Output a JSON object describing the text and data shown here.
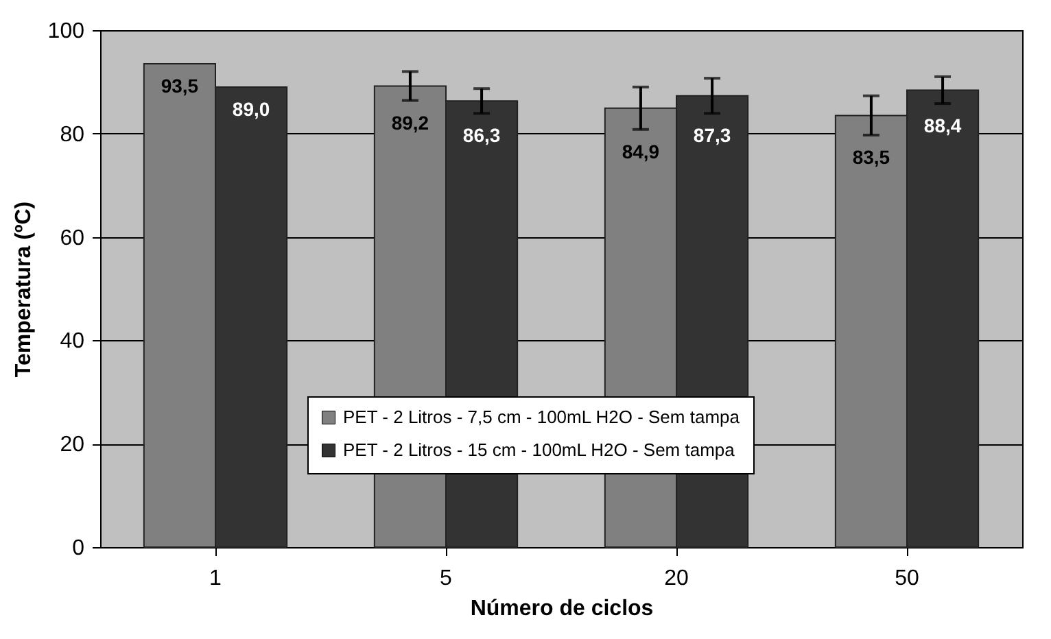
{
  "chart_data": {
    "type": "bar",
    "xlabel": "Número de ciclos",
    "ylabel": "Temperatura (ºC)",
    "categories": [
      "1",
      "5",
      "20",
      "50"
    ],
    "series": [
      {
        "name": "PET - 2 Litros - 7,5 cm - 100mL H2O - Sem tampa",
        "color": "#808080",
        "values": [
          93.5,
          89.2,
          84.9,
          83.5
        ],
        "value_labels": [
          "93,5",
          "89,2",
          "84,9",
          "83,5"
        ],
        "errors": [
          null,
          2.8,
          4.1,
          3.8
        ]
      },
      {
        "name": "PET - 2 Litros - 15 cm - 100mL H2O - Sem tampa",
        "color": "#333333",
        "values": [
          89.0,
          86.3,
          87.3,
          88.4
        ],
        "value_labels": [
          "89,0",
          "86,3",
          "87,3",
          "88,4"
        ],
        "errors": [
          null,
          2.4,
          3.4,
          2.6
        ]
      }
    ],
    "ylim": [
      0,
      100
    ],
    "yticks": [
      0,
      20,
      40,
      60,
      80,
      100
    ],
    "grid": "y",
    "legend": "bottom"
  }
}
